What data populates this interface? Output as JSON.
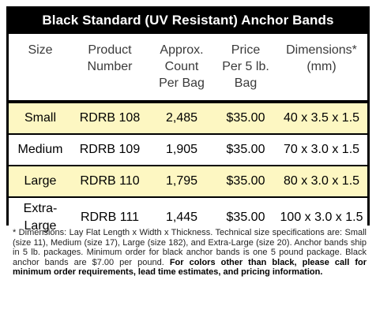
{
  "table": {
    "title": "Black Standard (UV Resistant) Anchor Bands",
    "headers": [
      [
        "Size"
      ],
      [
        "Product",
        "Number"
      ],
      [
        "Approx.",
        "Count",
        "Per Bag"
      ],
      [
        "Price",
        "Per 5 lb.",
        "Bag"
      ],
      [
        "Dimensions*",
        "(mm)"
      ]
    ],
    "rows": [
      {
        "size": [
          "Small"
        ],
        "product": "RDRB 108",
        "count": "2,485",
        "price": "$35.00",
        "dimensions": "40 x 3.5 x 1.5",
        "shade": "yellow"
      },
      {
        "size": [
          "Medium"
        ],
        "product": "RDRB 109",
        "count": "1,905",
        "price": "$35.00",
        "dimensions": "70 x 3.0 x 1.5",
        "shade": "white"
      },
      {
        "size": [
          "Large"
        ],
        "product": "RDRB 110",
        "count": "1,795",
        "price": "$35.00",
        "dimensions": "80 x 3.0 x 1.5",
        "shade": "yellow"
      },
      {
        "size": [
          "Extra-",
          "Large"
        ],
        "product": "RDRB 111",
        "count": "1,445",
        "price": "$35.00",
        "dimensions": "100 x 3.0 x 1.5",
        "shade": "white"
      }
    ],
    "colors": {
      "frame": "#000000",
      "title_text": "#ffffff",
      "row_yellow": "#fdf7c2",
      "row_white": "#ffffff"
    }
  },
  "footnote": {
    "text": "* Dimensions: Lay Flat Length x Width x Thickness. Technical size specifications are: Small (size 11), Medium (size 17), Large (size 182), and Extra-Large (size 20). Anchor bands ship in 5 lb. packages. Minimum order for black anchor bands is one 5 pound package. Black anchor bands are $7.00 per pound. ",
    "bold_text": "For colors other than black, please call for minimum order requirements, lead time estimates, and pricing information."
  }
}
